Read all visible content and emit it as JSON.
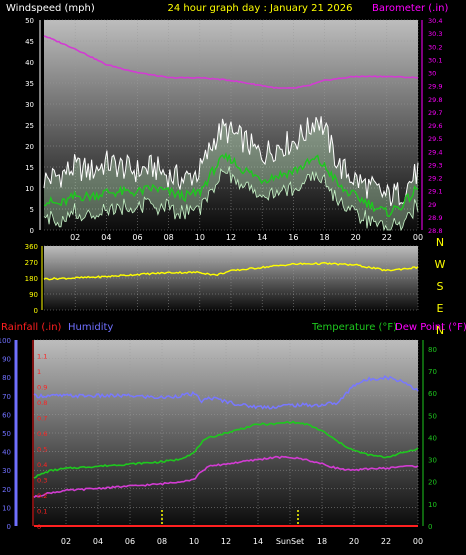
{
  "colors": {
    "background": "#000000",
    "plot_bg_top": "#bdbdbd",
    "plot_bg_bottom": "#0b0b0b",
    "wind_gust": "#ffffff",
    "wind_avg": "#1ec81e",
    "wind_fill": "#c8f5c8",
    "barometer": "#d23cd2",
    "direction": "#ffff00",
    "humidity": "#7878ff",
    "temperature": "#1ec81e",
    "dew_point": "#d23cd2",
    "rainfall": "#ff2020",
    "label_yellow": "#ffff00",
    "label_magenta": "#ff00ff",
    "label_red": "#ff2020",
    "label_humidity": "#7070ff",
    "label_temp": "#1ec81e",
    "axis_text": "#ffffff"
  },
  "chart_data": [
    {
      "type": "line",
      "title": "24 hour graph day : January 21 2026",
      "left_label": "Windspeed (mph)",
      "right_label": "Barometer (.in)",
      "x_ticks": [
        "02",
        "04",
        "06",
        "08",
        "10",
        "12",
        "14",
        "16",
        "18",
        "20",
        "22",
        "00"
      ],
      "x_range": [
        0,
        24
      ],
      "y_left": {
        "min": 0,
        "max": 50,
        "ticks": [
          "0",
          "5",
          "10",
          "15",
          "20",
          "25",
          "30",
          "35",
          "40",
          "45",
          "50"
        ]
      },
      "y_right": {
        "min": 28.8,
        "max": 30.4,
        "ticks": [
          "28.8",
          "28.9",
          "29",
          "29.1",
          "29.2",
          "29.3",
          "29.4",
          "29.5",
          "29.6",
          "29.7",
          "29.8",
          "29.9",
          "30",
          "30.1",
          "30.2",
          "30.3",
          "30.4"
        ]
      },
      "grid": true,
      "series": [
        {
          "key": "gust",
          "axis": "left",
          "x": [
            0,
            1,
            2,
            3,
            4,
            5,
            6,
            7,
            8,
            9,
            10,
            10.5,
            11,
            11.5,
            12,
            12.5,
            13,
            13.5,
            14,
            15,
            16,
            17,
            17.5,
            18,
            18.5,
            19,
            20,
            21,
            22,
            23,
            24
          ],
          "values": [
            12,
            13,
            15,
            14,
            16,
            15,
            14,
            15,
            13,
            12,
            14,
            18,
            22,
            24,
            23,
            22,
            21,
            19,
            18,
            20,
            21,
            24,
            27,
            24,
            19,
            15,
            12,
            10,
            8,
            9,
            14
          ]
        },
        {
          "key": "avg",
          "axis": "left",
          "x": [
            0,
            1,
            2,
            3,
            4,
            5,
            6,
            7,
            8,
            9,
            10,
            10.5,
            11,
            11.5,
            12,
            12.5,
            13,
            13.5,
            14,
            15,
            16,
            17,
            17.5,
            18,
            18.5,
            19,
            20,
            21,
            22,
            23,
            24
          ],
          "values": [
            7,
            6,
            8,
            8,
            9,
            9,
            9,
            10,
            9,
            8,
            9,
            12,
            15,
            17,
            17,
            15,
            14,
            13,
            12,
            13,
            14,
            16,
            17,
            15,
            13,
            10,
            8,
            6,
            4,
            6,
            10
          ]
        },
        {
          "key": "baro",
          "axis": "right",
          "x": [
            0,
            2,
            4,
            6,
            8,
            10,
            12,
            14,
            15,
            16,
            17,
            18,
            20,
            22,
            24
          ],
          "values": [
            30.28,
            30.18,
            30.06,
            30.0,
            29.96,
            29.96,
            29.94,
            29.9,
            29.88,
            29.88,
            29.9,
            29.94,
            29.97,
            29.97,
            29.96
          ]
        }
      ]
    },
    {
      "type": "line",
      "x_ticks": [
        "02",
        "04",
        "06",
        "08",
        "10",
        "12",
        "14",
        "16",
        "18",
        "20",
        "22",
        "00"
      ],
      "x_range": [
        0,
        24
      ],
      "y_left": {
        "min": 0,
        "max": 360,
        "ticks": [
          "0",
          "90",
          "180",
          "270",
          "360"
        ]
      },
      "right_ticks": [
        "N",
        "W",
        "S",
        "E",
        "N"
      ],
      "grid": true,
      "series": [
        {
          "key": "direction",
          "x": [
            0,
            2,
            4,
            6,
            8,
            10,
            11,
            12,
            14,
            16,
            18,
            20,
            22,
            24
          ],
          "values": [
            175,
            180,
            188,
            200,
            210,
            212,
            196,
            220,
            240,
            258,
            262,
            253,
            222,
            240
          ]
        }
      ]
    },
    {
      "type": "line",
      "left_label_rain": "Rainfall (.in)",
      "left_label_hum": "Humidity",
      "right_label_temp": "Temperature (°F)",
      "right_label_dew": "Dew Point (°F)",
      "x_ticks": [
        "02",
        "04",
        "06",
        "08",
        "10",
        "12",
        "14",
        "SunSet",
        "18",
        "20",
        "22",
        "00"
      ],
      "x_range": [
        0,
        24
      ],
      "y_humidity": {
        "min": 0,
        "max": 100,
        "ticks": [
          "0",
          "10",
          "20",
          "30",
          "40",
          "50",
          "60",
          "70",
          "80",
          "90",
          "100"
        ]
      },
      "y_rain": {
        "min": 0,
        "max": 1.2,
        "ticks": [
          "0",
          "0.1",
          "0.2",
          "0.3",
          "0.4",
          "0.5",
          "0.6",
          "0.7",
          "0.8",
          "0.9",
          "1",
          "1.1"
        ]
      },
      "y_temp": {
        "min": 0,
        "max": 84,
        "ticks": [
          "0",
          "10",
          "20",
          "30",
          "40",
          "50",
          "60",
          "70",
          "80"
        ]
      },
      "grid": true,
      "markers": [
        8,
        16.5
      ],
      "series": [
        {
          "key": "humidity",
          "axis": "humidity",
          "x": [
            0,
            2,
            4,
            6,
            8,
            9,
            10,
            10.5,
            11,
            12,
            13,
            14,
            15,
            16,
            17,
            18,
            18.5,
            19,
            20,
            21,
            22,
            23,
            24
          ],
          "values": [
            70,
            70,
            70,
            70,
            69,
            70,
            71,
            67,
            69,
            67,
            65,
            64,
            64,
            65,
            65,
            65,
            66,
            66,
            76,
            79,
            80,
            78,
            73
          ]
        },
        {
          "key": "temperature",
          "axis": "temp",
          "x": [
            0,
            1,
            2,
            4,
            6,
            8,
            9,
            10,
            10.5,
            11,
            12,
            13,
            14,
            15,
            16,
            17,
            18,
            19,
            20,
            21,
            22,
            23,
            24
          ],
          "values": [
            22,
            25,
            26,
            27,
            28,
            29,
            30,
            33,
            38,
            40,
            42,
            44,
            46,
            46,
            47,
            46,
            43,
            38,
            34,
            32,
            31,
            33,
            35
          ]
        },
        {
          "key": "dewpoint",
          "axis": "temp",
          "x": [
            0,
            1,
            2,
            4,
            6,
            8,
            9,
            10,
            10.5,
            11,
            12,
            13,
            14,
            15,
            16,
            17,
            18,
            19,
            20,
            21,
            22,
            23,
            24
          ],
          "values": [
            13,
            15,
            16,
            17,
            18,
            19,
            20,
            21,
            25,
            27,
            28,
            29,
            30,
            31,
            31,
            30,
            28,
            26,
            25,
            26,
            26,
            27,
            27
          ]
        },
        {
          "key": "rain",
          "axis": "rain",
          "x": [
            0,
            24
          ],
          "values": [
            0,
            0
          ]
        }
      ]
    }
  ]
}
